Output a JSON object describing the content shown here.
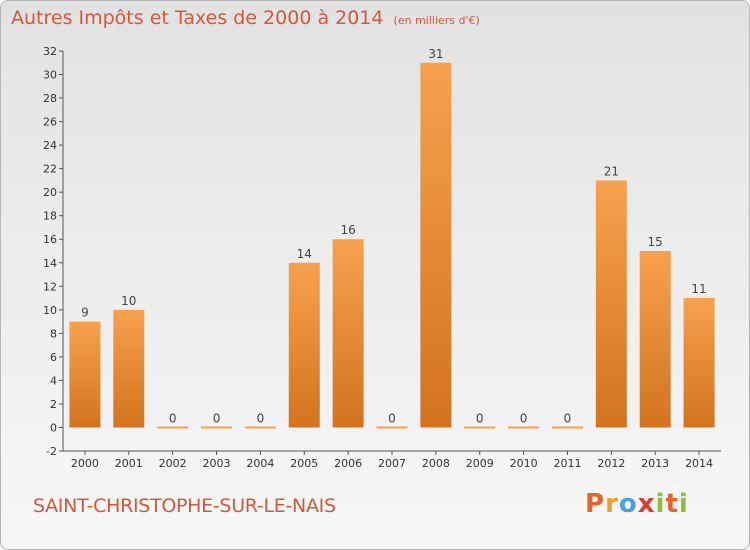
{
  "title": "Autres Impôts et Taxes de 2000 à 2014",
  "subtitle": "(en milliers d'€)",
  "commune": "SAINT-CHRISTOPHE-SUR-LE-NAIS",
  "logo": {
    "letters": [
      "P",
      "r",
      "o",
      "x",
      "i",
      "t",
      "i"
    ],
    "colors": [
      "#e8622a",
      "#f0a020",
      "#4aa0e0",
      "#e03a2a",
      "#8cbf3a",
      "#e8622a",
      "#8cbf3a"
    ]
  },
  "colors": {
    "title": "#d2583a",
    "bar_light": "#f7a14e",
    "bar_dark": "#d2731f"
  },
  "chart_data": {
    "type": "bar",
    "title": "Autres Impôts et Taxes de 2000 à 2014",
    "subtitle": "(en milliers d'€)",
    "categories": [
      "2000",
      "2001",
      "2002",
      "2003",
      "2004",
      "2005",
      "2006",
      "2007",
      "2008",
      "2009",
      "2010",
      "2011",
      "2012",
      "2013",
      "2014"
    ],
    "values": [
      9,
      10,
      0,
      0,
      0,
      14,
      16,
      0,
      31,
      0,
      0,
      0,
      21,
      15,
      11
    ],
    "data_labels": [
      "9",
      "10",
      "0",
      "0",
      "0",
      "14",
      "16",
      "0",
      "31",
      "0",
      "0",
      "0",
      "21",
      "15",
      "11"
    ],
    "ylim": [
      -2,
      32
    ],
    "yticks": [
      -2,
      0,
      2,
      4,
      6,
      8,
      10,
      12,
      14,
      16,
      18,
      20,
      22,
      24,
      26,
      28,
      30,
      32
    ],
    "xlabel": "",
    "ylabel": "",
    "grid": false
  }
}
